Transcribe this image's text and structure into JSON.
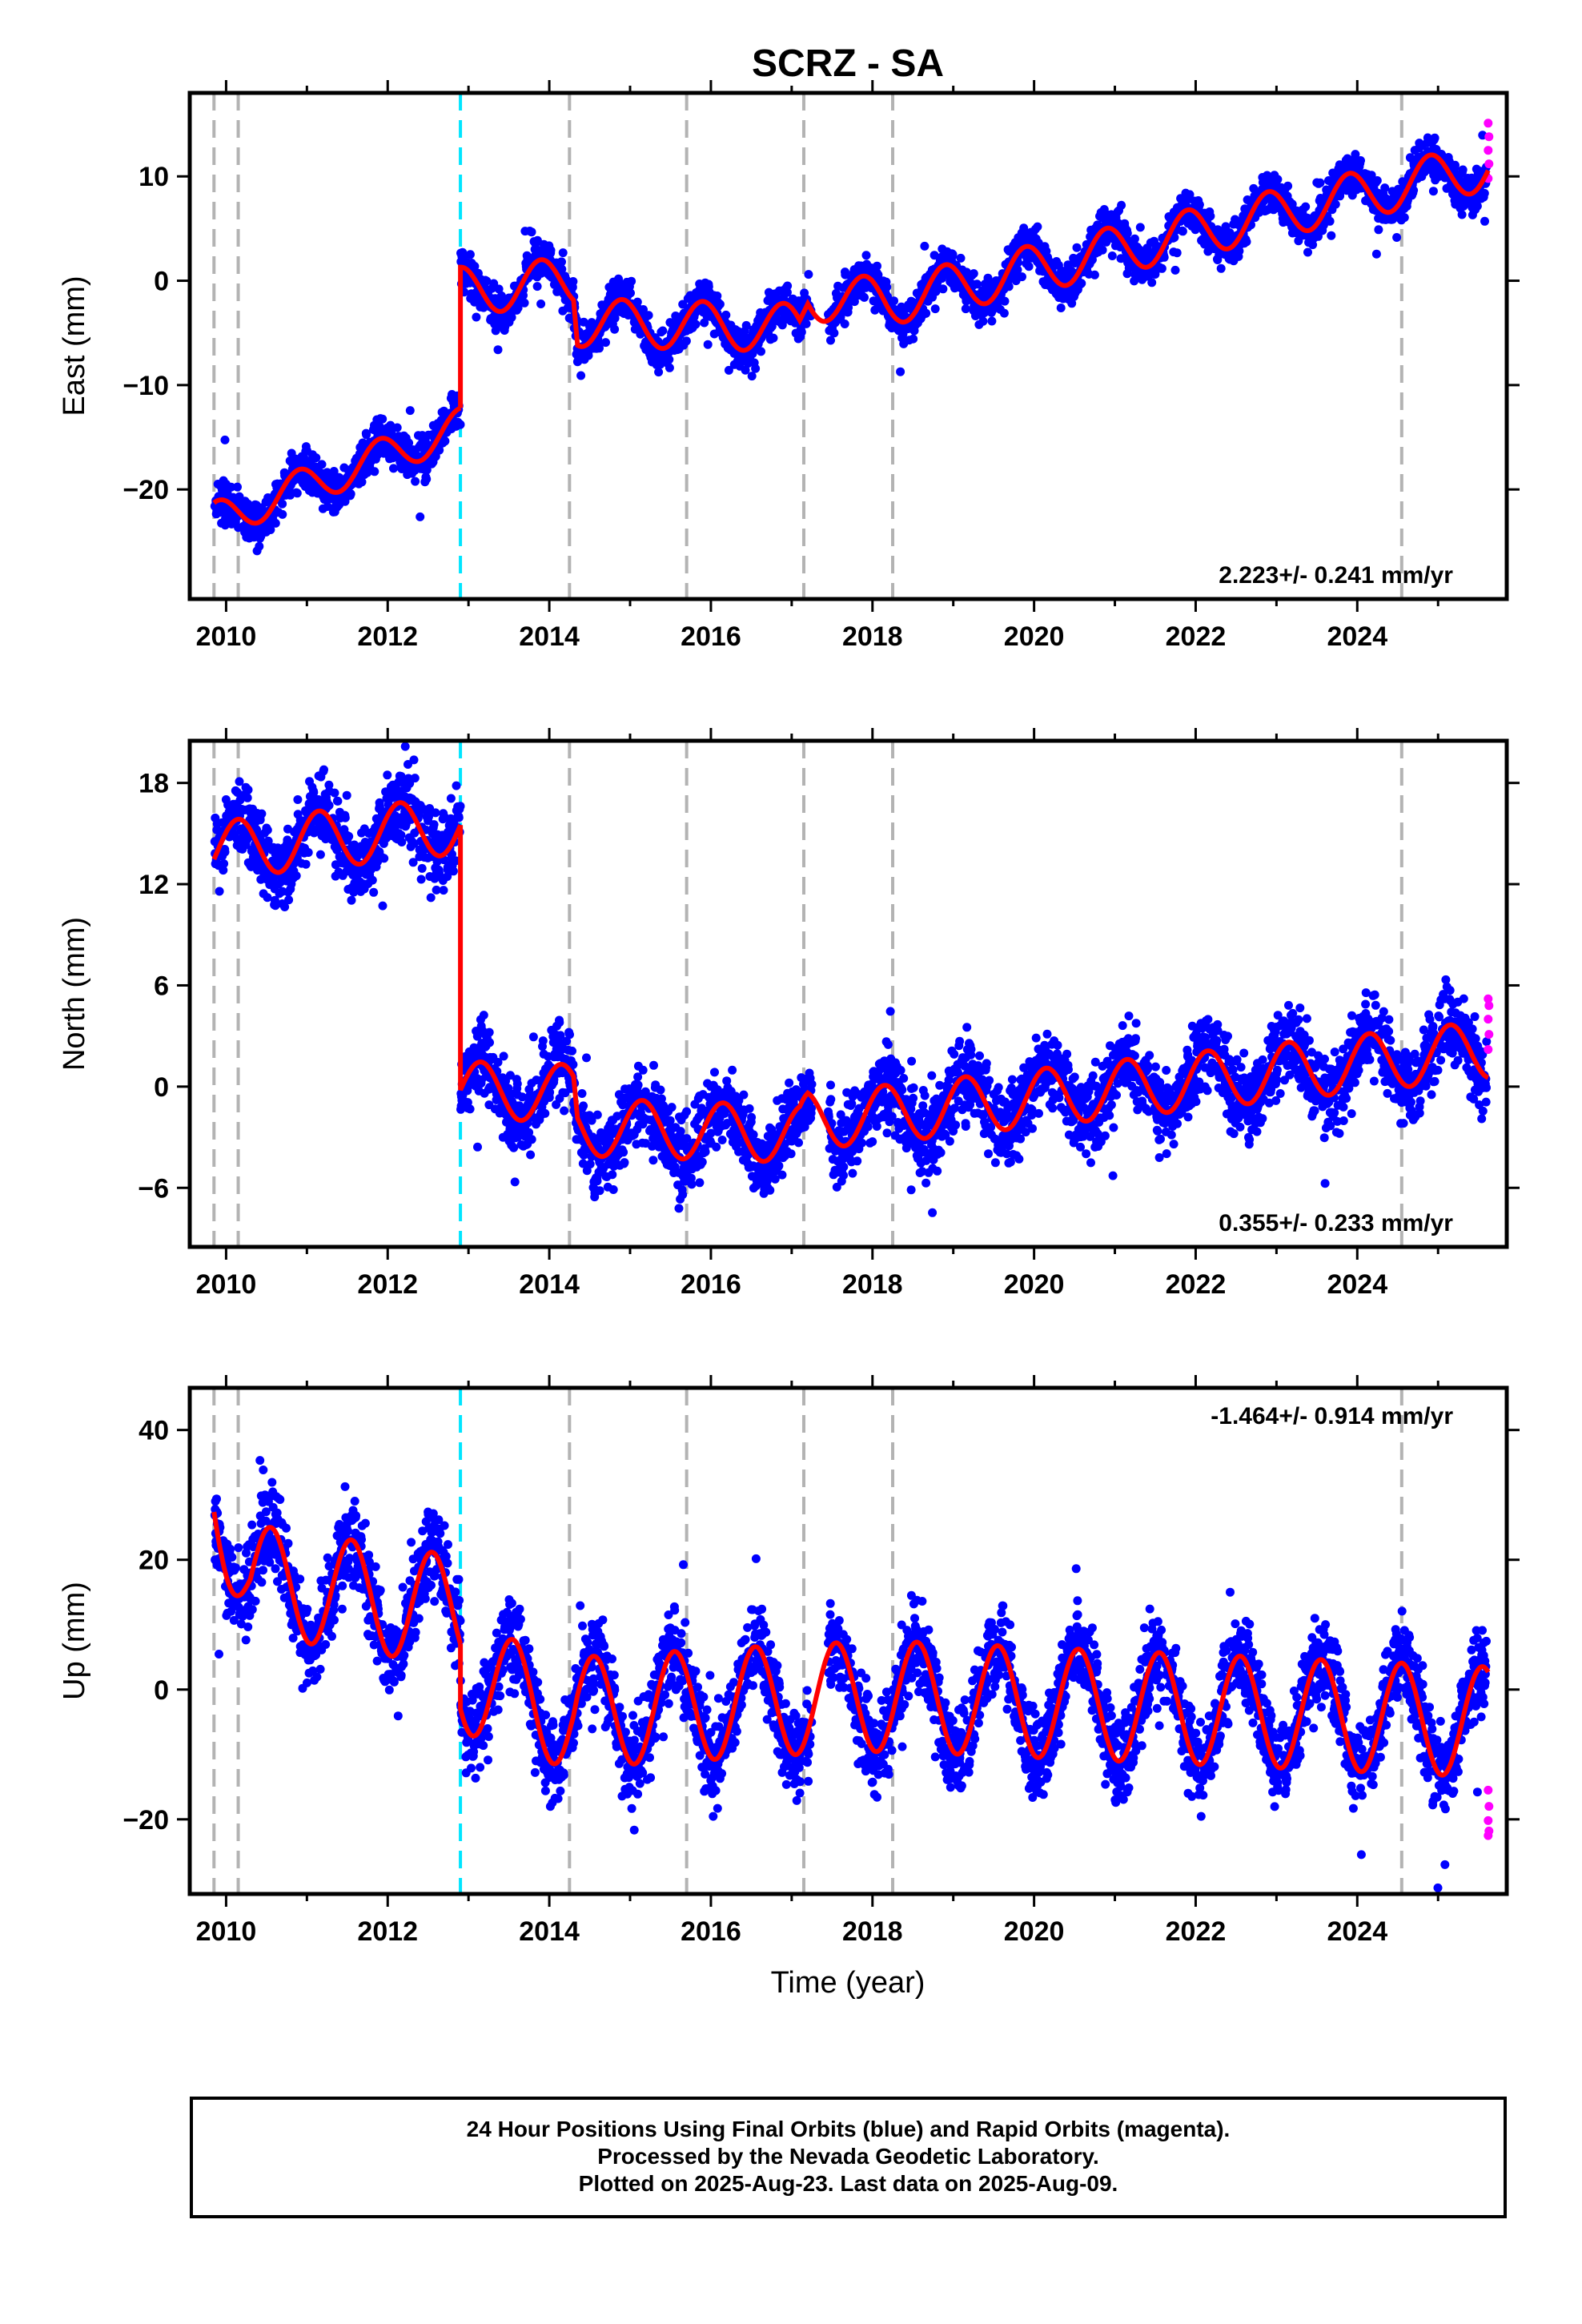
{
  "chart_data": {
    "type": "scatter",
    "title": "SCRZ - SA",
    "xlabel": "Time (year)",
    "x_ticks": [
      2010,
      2012,
      2014,
      2016,
      2018,
      2020,
      2022,
      2024
    ],
    "xlim": [
      2009.55,
      2025.85
    ],
    "equipment_change_years": [
      2009.85,
      2010.15,
      2014.25,
      2015.7,
      2017.15,
      2018.25,
      2024.55
    ],
    "earthquake_year": 2012.9,
    "colors": {
      "final_orbits": "#0000ff",
      "rapid_orbits": "#ff00ff",
      "model": "#ff0000",
      "equipment_change": "#b3b3b3",
      "earthquake": "#00e5ff"
    },
    "panels": [
      {
        "id": "east",
        "ylabel": "East (mm)",
        "ylim": [
          -30.5,
          18
        ],
        "y_ticks": [
          -20,
          -10,
          0,
          10
        ],
        "rate_label": "2.223+/- 0.241 mm/yr",
        "rate_position": "bottom-right",
        "model": {
          "segments": [
            {
              "start": 2009.85,
              "end": 2012.9,
              "trend": [
                [
                  2009.85,
                  -23
                ],
                [
                  2012.9,
                  -14
                ]
              ],
              "amplitude": 1.8
            },
            {
              "start": 2012.9,
              "end": 2025.62,
              "trend": [
                [
                  2012.9,
                  -1
                ],
                [
                  2014.3,
                  0
                ],
                [
                  2014.35,
                  -4
                ],
                [
                  2017.1,
                  -4.5
                ],
                [
                  2017.2,
                  -1.5
                ],
                [
                  2018.2,
                  -2
                ],
                [
                  2025.62,
                  11
                ]
              ],
              "amplitude": 2.3
            }
          ],
          "phase": 0.35
        },
        "noise": 1.2,
        "rapid_values": [
          9.8,
          11.2,
          12.5,
          13.8,
          15.1
        ]
      },
      {
        "id": "north",
        "ylabel": "North (mm)",
        "ylim": [
          -9.5,
          20.5
        ],
        "y_ticks": [
          -6,
          0,
          6,
          12,
          18
        ],
        "rate_label": "0.355+/- 0.233 mm/yr",
        "rate_position": "bottom-right",
        "model": {
          "segments": [
            {
              "start": 2009.85,
              "end": 2012.9,
              "trend": [
                [
                  2009.85,
                  14
                ],
                [
                  2012.9,
                  15.5
                ]
              ],
              "amplitude": 1.7
            },
            {
              "start": 2012.9,
              "end": 2025.62,
              "trend": [
                [
                  2012.9,
                  -0.2
                ],
                [
                  2014.3,
                  -0.4
                ],
                [
                  2014.35,
                  -2.4
                ],
                [
                  2017.1,
                  -2.8
                ],
                [
                  2017.2,
                  -2
                ],
                [
                  2018.2,
                  -1.6
                ],
                [
                  2025.62,
                  2.2
                ]
              ],
              "amplitude": 1.7
            }
          ],
          "phase": 0.1
        },
        "noise": 1.4,
        "rapid_values": [
          2.2,
          3.1,
          4.0,
          4.8,
          5.2
        ]
      },
      {
        "id": "up",
        "ylabel": "Up (mm)",
        "ylim": [
          -31.5,
          46.5
        ],
        "y_ticks": [
          -20,
          0,
          20,
          40
        ],
        "rate_label": "-1.464+/- 0.914 mm/yr",
        "rate_position": "top-right",
        "model": {
          "segments": [
            {
              "start": 2009.85,
              "end": 2012.9,
              "trend": [
                [
                  2009.85,
                  30
                ],
                [
                  2010.3,
                  17
                ],
                [
                  2010.8,
                  16
                ],
                [
                  2012.9,
                  12
                ]
              ],
              "amplitude": 8.5
            },
            {
              "start": 2012.9,
              "end": 2025.62,
              "trend": [
                [
                  2012.9,
                  2
                ],
                [
                  2014.3,
                  -4
                ],
                [
                  2014.35,
                  -3.5
                ],
                [
                  2017.1,
                  -1.5
                ],
                [
                  2018.2,
                  -1
                ],
                [
                  2025.62,
                  -5
                ]
              ],
              "amplitude": 8.5
            }
          ],
          "phase": 0.7
        },
        "noise": 4.0,
        "rapid_values": [
          -15.5,
          -18.0,
          -20.2,
          -21.8,
          -22.5
        ]
      }
    ]
  },
  "footer": {
    "line1": "24 Hour Positions Using Final Orbits (blue) and Rapid Orbits (magenta).",
    "line2": "Processed by the Nevada Geodetic Laboratory.",
    "line3": "Plotted on 2025-Aug-23. Last data on 2025-Aug-09."
  }
}
